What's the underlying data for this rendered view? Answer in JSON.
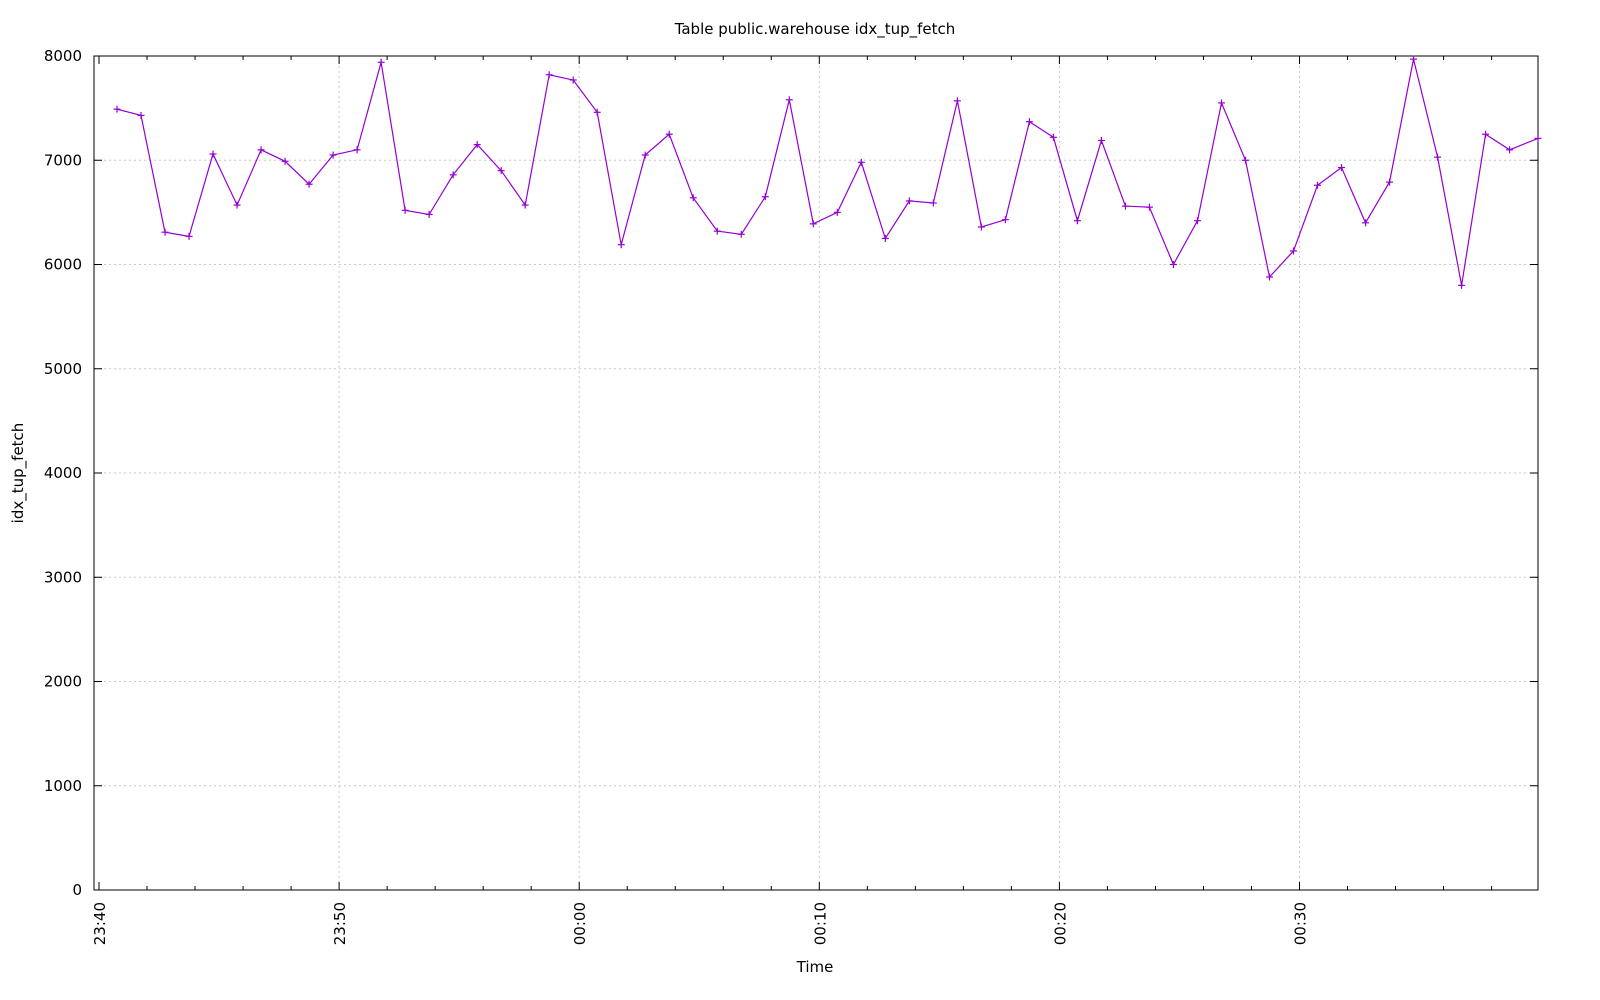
{
  "chart_data": {
    "type": "line",
    "title": "Table public.warehouse idx_tup_fetch",
    "xlabel": "Time",
    "ylabel": "idx_tup_fetch",
    "ylim": [
      0,
      8000
    ],
    "y_ticks": [
      0,
      1000,
      2000,
      3000,
      4000,
      5000,
      6000,
      7000,
      8000
    ],
    "xlim": [
      "23:40",
      "00:39:56"
    ],
    "x_ticks": [
      "23:40",
      "23:50",
      "00:00",
      "00:10",
      "00:20",
      "00:30"
    ],
    "grid": true,
    "legend": "none",
    "color": "#9400d3",
    "marker": "plus",
    "series": [
      {
        "x": [
          "23:40:45",
          "23:41:45",
          "23:42:45",
          "23:43:45",
          "23:44:45",
          "23:45:45",
          "23:46:45",
          "23:47:45",
          "23:48:45",
          "23:49:45",
          "23:50:45",
          "23:51:45",
          "23:52:45",
          "23:53:45",
          "23:54:45",
          "23:55:45",
          "23:56:45",
          "23:57:45",
          "23:58:45",
          "23:59:45",
          "00:00:45",
          "00:01:45",
          "00:02:45",
          "00:03:45",
          "00:04:45",
          "00:05:45",
          "00:06:45",
          "00:07:45",
          "00:08:45",
          "00:09:45",
          "00:10:45",
          "00:11:45",
          "00:12:45",
          "00:13:45",
          "00:14:45",
          "00:15:45",
          "00:16:45",
          "00:17:45",
          "00:18:45",
          "00:19:45",
          "00:20:45",
          "00:21:45",
          "00:22:45",
          "00:23:45",
          "00:24:45",
          "00:25:45",
          "00:26:45",
          "00:27:45",
          "00:28:45",
          "00:29:45",
          "00:30:45",
          "00:31:45",
          "00:32:45",
          "00:33:45",
          "00:34:45",
          "00:35:45",
          "00:36:45",
          "00:37:45",
          "00:38:45",
          "00:39:56"
        ],
        "values": [
          7490,
          7430,
          6310,
          6270,
          7060,
          6570,
          7100,
          6990,
          6770,
          7050,
          7100,
          7940,
          6520,
          6480,
          6860,
          7150,
          6900,
          6570,
          7820,
          7770,
          7460,
          6190,
          7050,
          7250,
          6640,
          6320,
          6290,
          6650,
          7580,
          6390,
          6500,
          6980,
          6250,
          6610,
          6590,
          7570,
          6360,
          6430,
          7370,
          7220,
          6420,
          7190,
          6560,
          6550,
          6000,
          6420,
          7550,
          7000,
          5880,
          6130,
          6760,
          6930,
          6400,
          6790,
          7970,
          7030,
          5800,
          7250,
          7100,
          7210
        ]
      }
    ]
  }
}
